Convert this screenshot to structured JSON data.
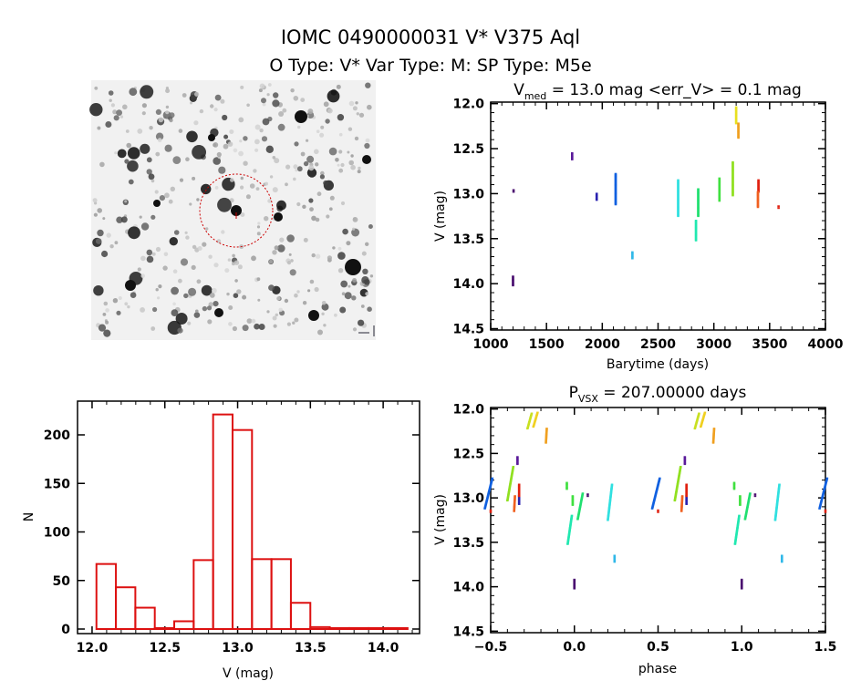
{
  "header": {
    "title": "IOMC 0490000031    V* V375 Aql",
    "subtitle": "O Type: V*  Var Type: M:  SP Type: M5e"
  },
  "finder_image": {
    "description_label": "finding chart",
    "circle_color": "#cc0000"
  },
  "chart_data": [
    {
      "id": "lightcurve",
      "type": "scatter",
      "title_main": "V",
      "title_sub": "med",
      "title_rest": " = 13.0 mag <err_V> = 0.1 mag",
      "xlabel": "Barytime (days)",
      "ylabel": "V (mag)",
      "xlim": [
        1000,
        4000
      ],
      "ylim": [
        14.5,
        12.0
      ],
      "xticks": [
        "1000",
        "1500",
        "2000",
        "2500",
        "3000",
        "3500",
        "4000"
      ],
      "yticks": [
        "12.0",
        "12.5",
        "13.0",
        "13.5",
        "14.0",
        "14.5"
      ],
      "clusters": [
        {
          "t": 1200,
          "vmin": 13.92,
          "vmax": 14.02,
          "color": "#4b1070"
        },
        {
          "t": 1205,
          "vmin": 12.96,
          "vmax": 12.98,
          "color": "#4b1070"
        },
        {
          "t": 1730,
          "vmin": 12.55,
          "vmax": 12.62,
          "color": "#5a1a9a"
        },
        {
          "t": 1950,
          "vmin": 13.0,
          "vmax": 13.07,
          "color": "#2a22b0"
        },
        {
          "t": 2120,
          "vmin": 12.78,
          "vmax": 13.12,
          "color": "#1060e0"
        },
        {
          "t": 2270,
          "vmin": 13.65,
          "vmax": 13.72,
          "color": "#30b8e8"
        },
        {
          "t": 2680,
          "vmin": 12.85,
          "vmax": 13.25,
          "color": "#30e0e0"
        },
        {
          "t": 2840,
          "vmin": 13.3,
          "vmax": 13.52,
          "color": "#20e8b0"
        },
        {
          "t": 2860,
          "vmin": 12.95,
          "vmax": 13.25,
          "color": "#20e070"
        },
        {
          "t": 3050,
          "vmin": 12.83,
          "vmax": 13.08,
          "color": "#40e040"
        },
        {
          "t": 3170,
          "vmin": 12.65,
          "vmax": 13.02,
          "color": "#90e020"
        },
        {
          "t": 3200,
          "vmin": 12.04,
          "vmax": 12.22,
          "color": "#e8e020"
        },
        {
          "t": 3220,
          "vmin": 12.22,
          "vmax": 12.38,
          "color": "#f0a020"
        },
        {
          "t": 3400,
          "vmin": 12.85,
          "vmax": 12.98,
          "color": "#e02010"
        },
        {
          "t": 3395,
          "vmin": 12.98,
          "vmax": 13.15,
          "color": "#f06020"
        },
        {
          "t": 3580,
          "vmin": 13.14,
          "vmax": 13.16,
          "color": "#e02010"
        }
      ]
    },
    {
      "id": "histogram",
      "type": "bar",
      "xlabel": "V (mag)",
      "ylabel": "N",
      "xlim": [
        11.9,
        14.25
      ],
      "ylim": [
        0,
        236
      ],
      "xticks": [
        "12.0",
        "12.5",
        "13.0",
        "13.5",
        "14.0"
      ],
      "yticks": [
        "0",
        "50",
        "100",
        "150",
        "200"
      ],
      "bin_start": 12.03,
      "bin_width": 0.1336,
      "values": [
        67,
        43,
        22,
        1,
        8,
        71,
        221,
        205,
        72,
        72,
        27,
        2,
        1,
        1,
        1,
        1
      ],
      "color": "#dd1111"
    },
    {
      "id": "phased",
      "type": "scatter",
      "title_main": "P",
      "title_sub": "VSX",
      "title_rest": " = 207.00000 days",
      "xlabel": "phase",
      "ylabel": "V (mag)",
      "xlim": [
        -0.5,
        1.5
      ],
      "ylim": [
        14.5,
        12.0
      ],
      "xticks": [
        "-0.5",
        "0.0",
        "0.5",
        "1.0",
        "1.5"
      ],
      "yticks": [
        "12.0",
        "12.5",
        "13.0",
        "13.5",
        "14.0",
        "14.5"
      ],
      "clusters": [
        {
          "p0": 0.0,
          "p1": 0.0,
          "vmin": 13.92,
          "vmax": 14.02,
          "color": "#4b1070"
        },
        {
          "p0": 0.08,
          "p1": 0.08,
          "vmin": 12.96,
          "vmax": 12.98,
          "color": "#4b1070"
        },
        {
          "p0": 0.66,
          "p1": 0.66,
          "vmin": 12.54,
          "vmax": 12.62,
          "color": "#5a1a9a"
        },
        {
          "p0": 0.67,
          "p1": 0.67,
          "vmin": 12.98,
          "vmax": 13.07,
          "color": "#2a22b0"
        },
        {
          "p0": 0.465,
          "p1": 0.51,
          "vmin": 12.78,
          "vmax": 13.12,
          "color": "#1060e0"
        },
        {
          "p0": 0.24,
          "p1": 0.24,
          "vmin": 13.65,
          "vmax": 13.72,
          "color": "#30b8e8"
        },
        {
          "p0": 0.2,
          "p1": 0.225,
          "vmin": 12.85,
          "vmax": 13.25,
          "color": "#30e0e0"
        },
        {
          "p0": 0.96,
          "p1": 0.985,
          "vmin": 13.2,
          "vmax": 13.52,
          "color": "#20e8b0"
        },
        {
          "p0": 1.02,
          "p1": 1.05,
          "vmin": 12.95,
          "vmax": 13.24,
          "color": "#20e070"
        },
        {
          "p0": 0.955,
          "p1": 0.955,
          "vmin": 12.83,
          "vmax": 12.9,
          "color": "#40e040"
        },
        {
          "p0": 0.99,
          "p1": 0.99,
          "vmin": 12.98,
          "vmax": 13.08,
          "color": "#40e040"
        },
        {
          "p0": 0.6,
          "p1": 0.635,
          "vmin": 12.65,
          "vmax": 13.03,
          "color": "#90e020"
        },
        {
          "p0": 0.72,
          "p1": 0.745,
          "vmin": 12.05,
          "vmax": 12.22,
          "color": "#c8e020"
        },
        {
          "p0": 0.755,
          "p1": 0.78,
          "vmin": 12.04,
          "vmax": 12.2,
          "color": "#f0d020"
        },
        {
          "p0": 0.83,
          "p1": 0.835,
          "vmin": 12.22,
          "vmax": 12.38,
          "color": "#f0a020"
        },
        {
          "p0": 0.67,
          "p1": 0.67,
          "vmin": 12.85,
          "vmax": 12.98,
          "color": "#e02010"
        },
        {
          "p0": 0.64,
          "p1": 0.645,
          "vmin": 12.98,
          "vmax": 13.15,
          "color": "#f06020"
        },
        {
          "p0": 0.5,
          "p1": 0.5,
          "vmin": 13.14,
          "vmax": 13.16,
          "color": "#e02010"
        }
      ]
    }
  ]
}
